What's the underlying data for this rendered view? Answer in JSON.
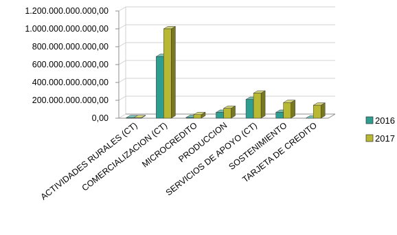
{
  "chart_data": {
    "type": "bar",
    "title": "",
    "xlabel": "",
    "ylabel": "",
    "categories": [
      "ACTIVIDADES RURALES (CT)",
      "COMERCIALIZACION (CT)",
      "MICROCREDITO",
      "PRODUCCION",
      "SERVICIOS DE APOYO  (CT)",
      "SOSTENIMIENTO",
      "TARJETA DE CREDITO"
    ],
    "series": [
      {
        "name": "2016",
        "values": [
          5000000000,
          690000000000,
          8000000000,
          65000000000,
          210000000000,
          65000000000,
          0
        ]
      },
      {
        "name": "2017",
        "values": [
          5000000000,
          1000000000000,
          40000000000,
          110000000000,
          280000000000,
          175000000000,
          145000000000
        ]
      }
    ],
    "ylim": [
      0,
      1200000000000
    ],
    "yticks": [
      "0,00",
      "200.000.000.000,00",
      "400.000.000.000,00",
      "600.000.000.000,00",
      "800.000.000.000,00",
      "1.000.000.000.000,00",
      "1.200.000.000.000,00"
    ],
    "grid": true,
    "legend_position": "right",
    "style": "3d-clustered-column",
    "colors": {
      "2016": "#2e9e91",
      "2017": "#b8b832",
      "gridline": "#d0d0d0",
      "axis": "#8c8c8c"
    }
  }
}
